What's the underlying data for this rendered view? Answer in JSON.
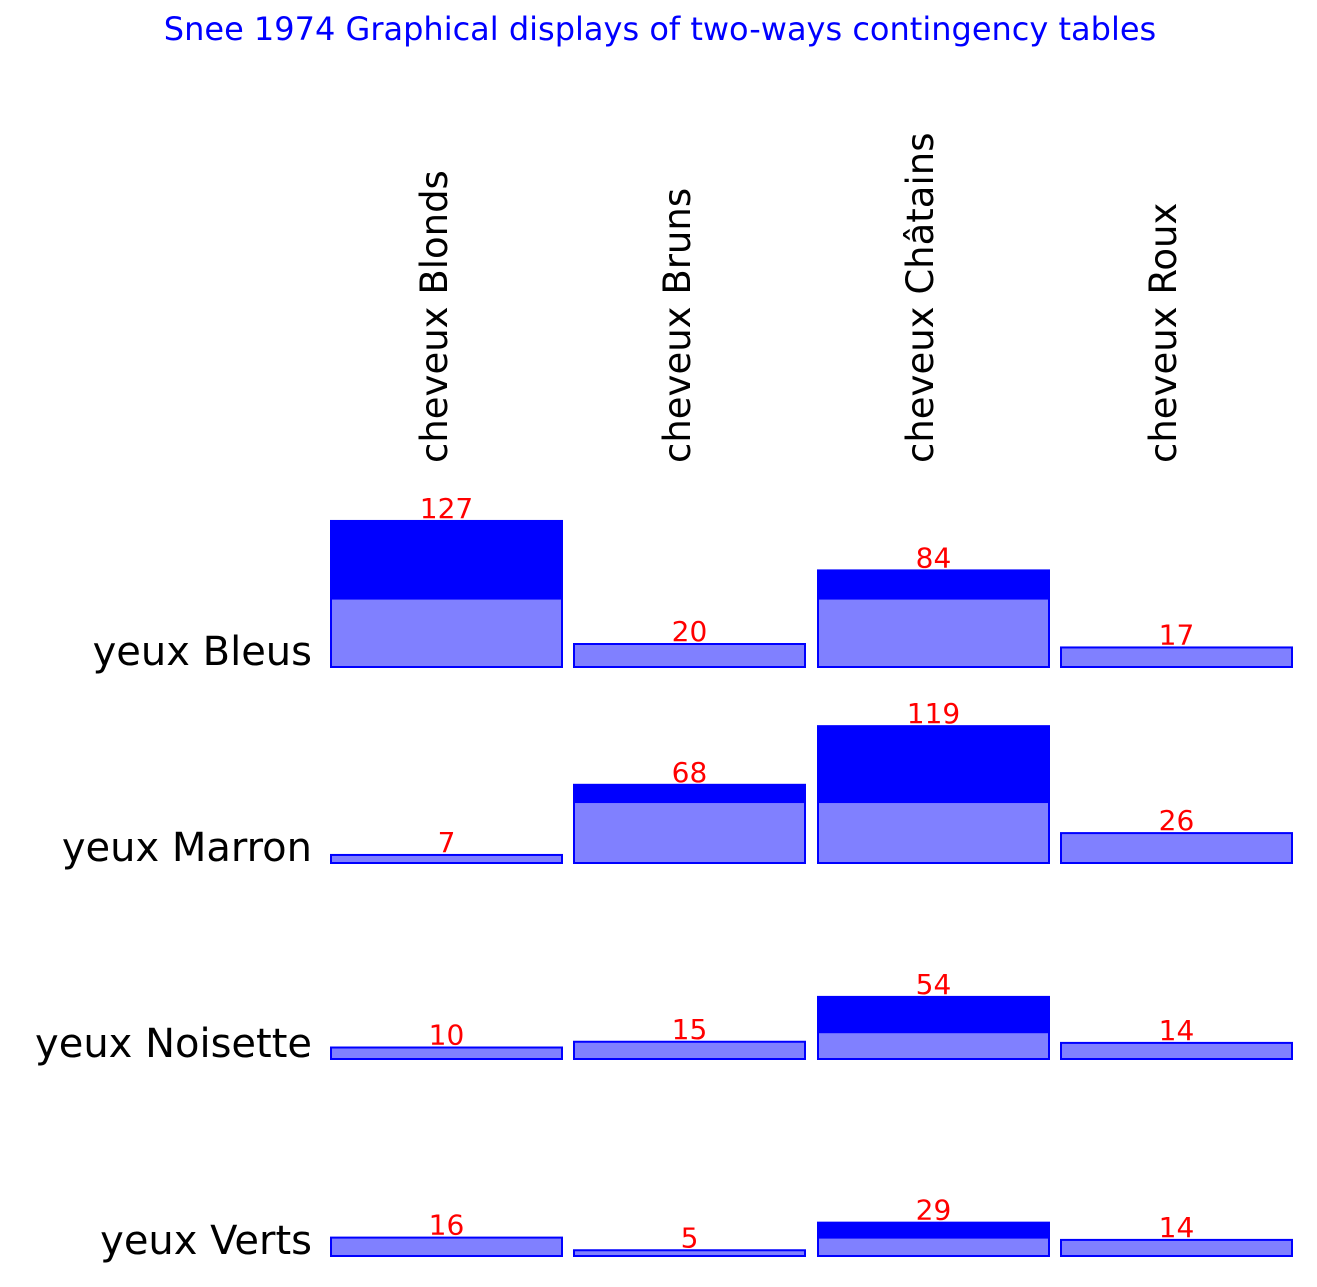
{
  "chart_data": {
    "type": "bar",
    "title": "Snee 1974 Graphical displays of two-ways contingency tables",
    "columns": [
      "cheveux Blonds",
      "cheveux Bruns",
      "cheveux Châtains",
      "cheveux Roux"
    ],
    "rows": [
      "yeux Bleus",
      "yeux Marron",
      "yeux Noisette",
      "yeux Verts"
    ],
    "values": [
      [
        127,
        20,
        84,
        17
      ],
      [
        7,
        68,
        119,
        26
      ],
      [
        10,
        15,
        54,
        14
      ],
      [
        16,
        5,
        29,
        14
      ]
    ],
    "expected": [
      [
        59.5,
        59.5,
        59.5,
        59.5
      ],
      [
        53.0,
        53.0,
        53.0,
        53.0
      ],
      [
        23.3,
        23.3,
        23.3,
        23.3
      ],
      [
        16.0,
        16.0,
        16.0,
        16.0
      ]
    ],
    "colors": {
      "title": "#0000ff",
      "observed_excess": "#0000ff",
      "expected_fill": "#8080ff",
      "bar_stroke": "#0000ff",
      "value_label": "#ff0000",
      "axis_label": "#000000"
    }
  }
}
